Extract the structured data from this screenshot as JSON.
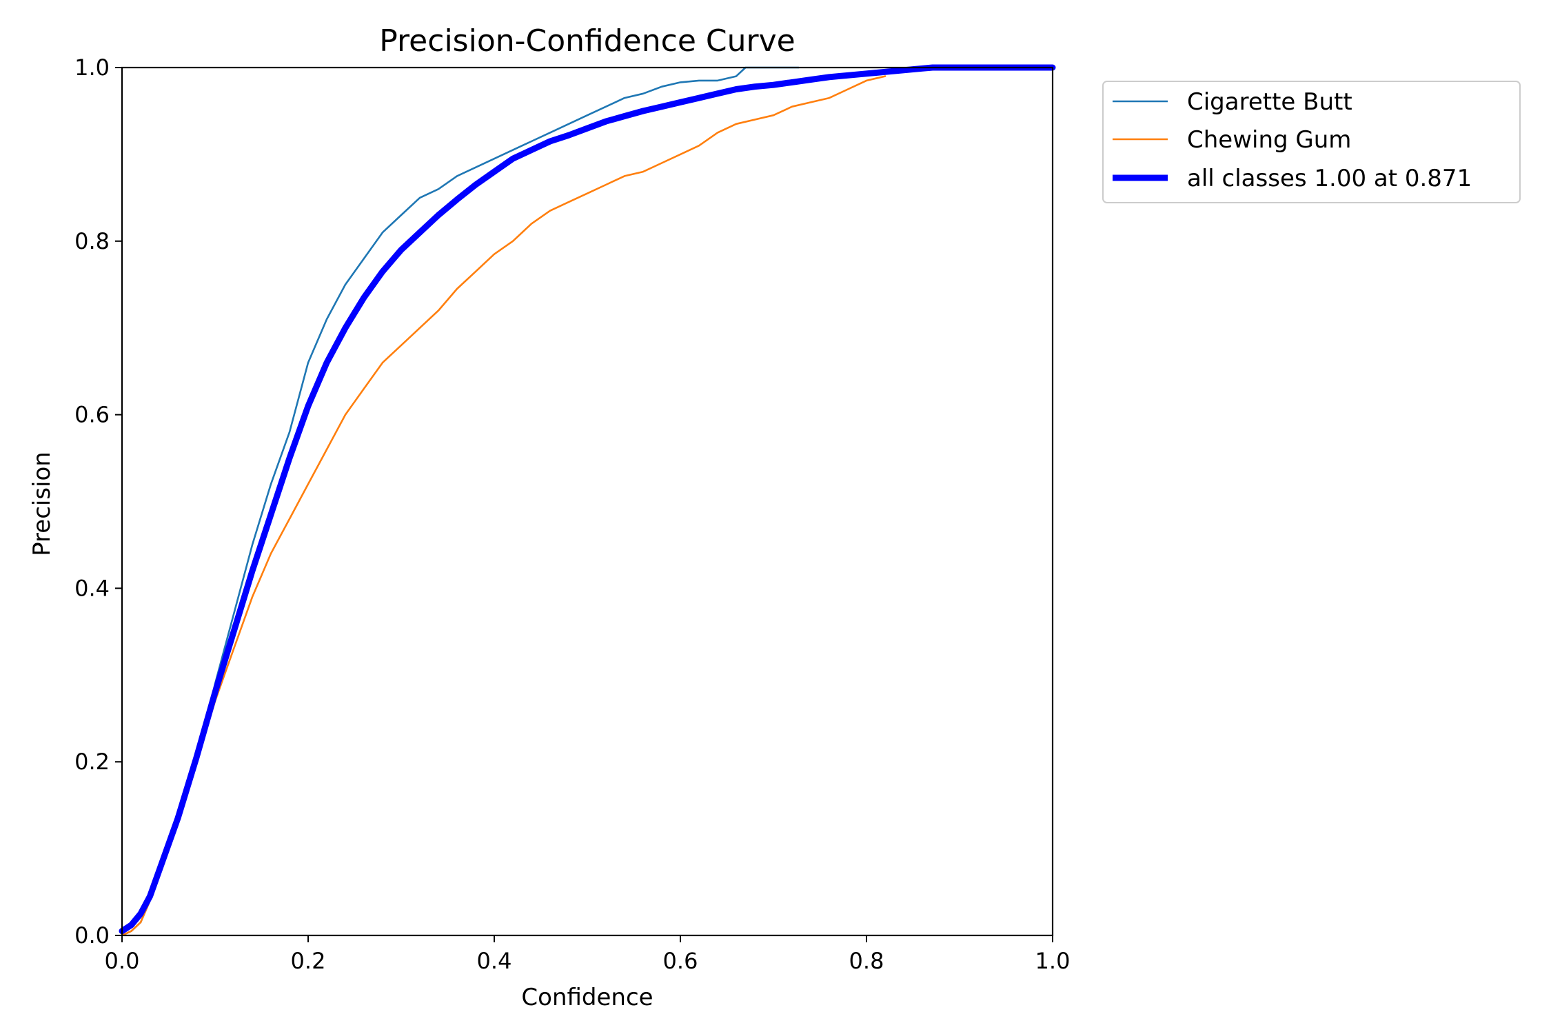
{
  "chart_data": {
    "type": "line",
    "title": "Precision-Confidence Curve",
    "xlabel": "Confidence",
    "ylabel": "Precision",
    "xlim": [
      0,
      1
    ],
    "ylim": [
      0,
      1
    ],
    "xticks": [
      "0.0",
      "0.2",
      "0.4",
      "0.6",
      "0.8",
      "1.0"
    ],
    "yticks": [
      "0.0",
      "0.2",
      "0.4",
      "0.6",
      "0.8",
      "1.0"
    ],
    "grid": false,
    "legend_placement": "outside-top-right",
    "series": [
      {
        "name": "Cigarette Butt",
        "color": "#1f77b4",
        "x": [
          0.0,
          0.01,
          0.02,
          0.03,
          0.04,
          0.06,
          0.08,
          0.1,
          0.12,
          0.14,
          0.16,
          0.18,
          0.2,
          0.22,
          0.24,
          0.26,
          0.28,
          0.3,
          0.32,
          0.34,
          0.36,
          0.38,
          0.4,
          0.42,
          0.44,
          0.46,
          0.48,
          0.5,
          0.52,
          0.54,
          0.56,
          0.58,
          0.6,
          0.62,
          0.64,
          0.66,
          0.67,
          0.68,
          0.7,
          0.72,
          0.727
        ],
        "y": [
          0.0,
          0.005,
          0.015,
          0.04,
          0.07,
          0.13,
          0.2,
          0.29,
          0.37,
          0.45,
          0.52,
          0.58,
          0.66,
          0.71,
          0.75,
          0.78,
          0.81,
          0.83,
          0.85,
          0.86,
          0.875,
          0.885,
          0.895,
          0.905,
          0.915,
          0.925,
          0.935,
          0.945,
          0.955,
          0.965,
          0.97,
          0.978,
          0.983,
          0.985,
          0.985,
          0.99,
          1.0,
          1.0,
          1.0,
          1.0,
          1.0
        ]
      },
      {
        "name": "Chewing Gum",
        "color": "#ff7f0e",
        "x": [
          0.0,
          0.01,
          0.02,
          0.03,
          0.04,
          0.06,
          0.08,
          0.1,
          0.12,
          0.14,
          0.16,
          0.18,
          0.2,
          0.22,
          0.24,
          0.26,
          0.28,
          0.3,
          0.32,
          0.34,
          0.36,
          0.38,
          0.4,
          0.42,
          0.44,
          0.46,
          0.48,
          0.5,
          0.52,
          0.54,
          0.56,
          0.58,
          0.6,
          0.62,
          0.64,
          0.66,
          0.68,
          0.7,
          0.72,
          0.74,
          0.76,
          0.78,
          0.8,
          0.82
        ],
        "y": [
          0.0,
          0.005,
          0.015,
          0.04,
          0.07,
          0.13,
          0.2,
          0.27,
          0.33,
          0.39,
          0.44,
          0.48,
          0.52,
          0.56,
          0.6,
          0.63,
          0.66,
          0.68,
          0.7,
          0.72,
          0.745,
          0.765,
          0.785,
          0.8,
          0.82,
          0.835,
          0.845,
          0.855,
          0.865,
          0.875,
          0.88,
          0.89,
          0.9,
          0.91,
          0.925,
          0.935,
          0.94,
          0.945,
          0.955,
          0.96,
          0.965,
          0.975,
          0.985,
          0.99
        ]
      },
      {
        "name": "all classes 1.00 at 0.871",
        "color": "#0000ff",
        "x": [
          0.0,
          0.01,
          0.02,
          0.03,
          0.04,
          0.06,
          0.08,
          0.1,
          0.12,
          0.14,
          0.16,
          0.18,
          0.2,
          0.22,
          0.24,
          0.26,
          0.28,
          0.3,
          0.32,
          0.34,
          0.36,
          0.38,
          0.4,
          0.42,
          0.44,
          0.46,
          0.48,
          0.5,
          0.52,
          0.54,
          0.56,
          0.58,
          0.6,
          0.62,
          0.64,
          0.66,
          0.68,
          0.7,
          0.72,
          0.74,
          0.76,
          0.78,
          0.8,
          0.82,
          0.84,
          0.86,
          0.871,
          0.9,
          0.95,
          1.0
        ],
        "y": [
          0.005,
          0.012,
          0.025,
          0.045,
          0.075,
          0.135,
          0.205,
          0.28,
          0.35,
          0.42,
          0.485,
          0.55,
          0.61,
          0.66,
          0.7,
          0.735,
          0.765,
          0.79,
          0.81,
          0.83,
          0.848,
          0.865,
          0.88,
          0.895,
          0.905,
          0.915,
          0.922,
          0.93,
          0.938,
          0.944,
          0.95,
          0.955,
          0.96,
          0.965,
          0.97,
          0.975,
          0.978,
          0.98,
          0.983,
          0.986,
          0.989,
          0.991,
          0.993,
          0.995,
          0.997,
          0.999,
          1.0,
          1.0,
          1.0,
          1.0
        ]
      }
    ]
  }
}
